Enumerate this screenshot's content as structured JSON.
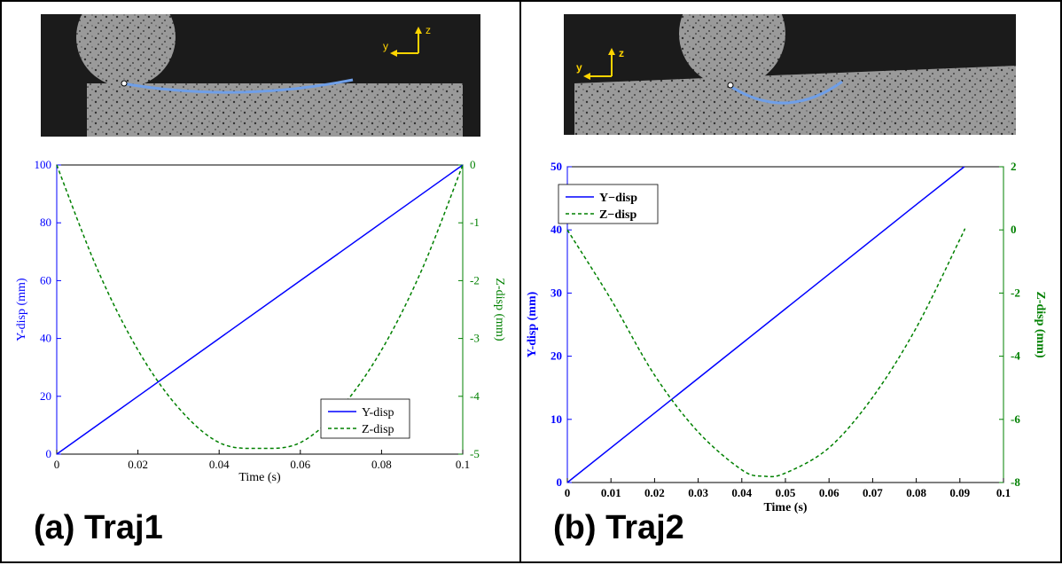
{
  "panels": [
    {
      "label": "(a) Traj1",
      "photo": {
        "y_arrow_label": "y",
        "z_arrow_label": "z"
      },
      "chart_data": {
        "type": "line",
        "xlabel": "Time (s)",
        "ylabel": "Y-disp (mm)",
        "ylabel_right": "Z-disp (mm)",
        "xlim": [
          0,
          0.1
        ],
        "ylim": [
          0,
          100
        ],
        "ylim_right": [
          -5,
          0
        ],
        "xticks": [
          "0",
          "0.02",
          "0.04",
          "0.06",
          "0.08",
          "0.1"
        ],
        "yticks": [
          "0",
          "20",
          "40",
          "60",
          "80",
          "100"
        ],
        "yticks_right": [
          "-5",
          "-4",
          "-3",
          "-2",
          "-1",
          "0"
        ],
        "legend_position": "bottom-right",
        "grid": false,
        "colors": {
          "left": "#0000ff",
          "right": "#008000"
        },
        "series": [
          {
            "name": "Y-disp",
            "axis": "left",
            "style": "solid",
            "x": [
              0,
              0.02,
              0.04,
              0.06,
              0.08,
              0.1
            ],
            "y": [
              0,
              20,
              40,
              60,
              80,
              100
            ]
          },
          {
            "name": "Z-disp",
            "axis": "right",
            "style": "dashed",
            "x": [
              0,
              0.01,
              0.02,
              0.03,
              0.04,
              0.05,
              0.06,
              0.07,
              0.08,
              0.09,
              0.1
            ],
            "y": [
              0,
              -1.8,
              -3.2,
              -4.2,
              -4.8,
              -4.9,
              -4.8,
              -4.2,
              -3.2,
              -1.8,
              0
            ]
          }
        ]
      }
    },
    {
      "label": "(b) Traj2",
      "photo": {
        "y_arrow_label": "y",
        "z_arrow_label": "z"
      },
      "chart_data": {
        "type": "line",
        "xlabel": "Time (s)",
        "ylabel": "Y-disp (mm)",
        "ylabel_right": "Z-disp (mm)",
        "xlim": [
          0,
          0.1
        ],
        "ylim": [
          0,
          50
        ],
        "ylim_right": [
          -8,
          2
        ],
        "xticks": [
          "0",
          "0.01",
          "0.02",
          "0.03",
          "0.04",
          "0.05",
          "0.06",
          "0.07",
          "0.08",
          "0.09",
          "0.1"
        ],
        "yticks": [
          "0",
          "10",
          "20",
          "30",
          "40",
          "50"
        ],
        "yticks_right": [
          "-8",
          "-6",
          "-4",
          "-2",
          "0",
          "2"
        ],
        "legend_position": "top-left",
        "grid": false,
        "colors": {
          "left": "#0000ff",
          "right": "#008000"
        },
        "series": [
          {
            "name": "Y−disp",
            "axis": "left",
            "style": "solid",
            "x": [
              0,
              0.02,
              0.04,
              0.06,
              0.08,
              0.091
            ],
            "y": [
              0,
              11,
              22,
              33,
              44,
              50
            ]
          },
          {
            "name": "Z−disp",
            "axis": "right",
            "style": "dashed",
            "x": [
              0,
              0.01,
              0.02,
              0.03,
              0.04,
              0.045,
              0.05,
              0.06,
              0.07,
              0.08,
              0.09,
              0.091
            ],
            "y": [
              0,
              -2.2,
              -4.6,
              -6.4,
              -7.6,
              -7.8,
              -7.7,
              -6.9,
              -5.3,
              -3.1,
              -0.3,
              0
            ]
          }
        ]
      }
    }
  ]
}
